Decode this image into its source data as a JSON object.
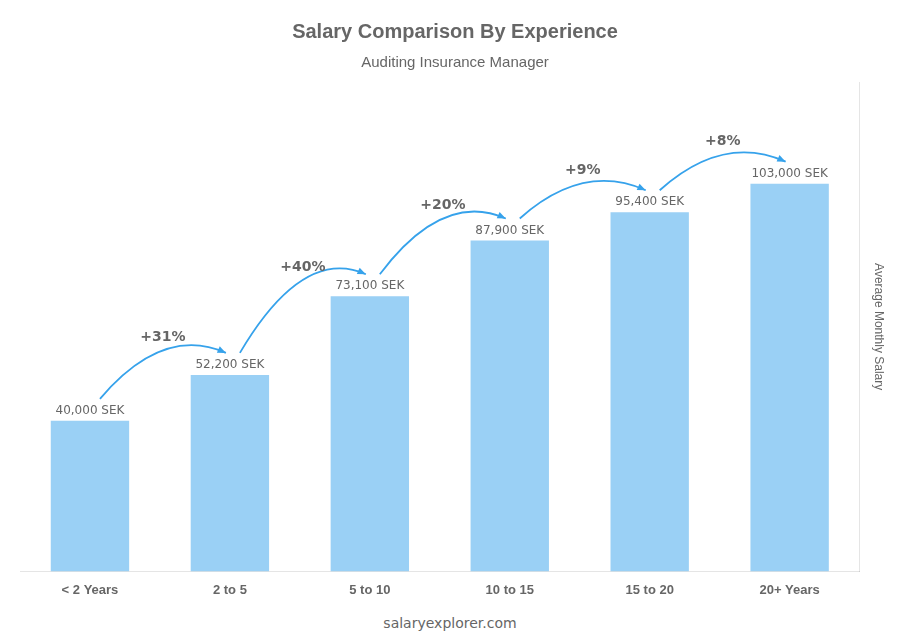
{
  "chart_data": {
    "type": "bar",
    "title": "Salary Comparison By Experience",
    "subtitle": "Auditing Insurance Manager",
    "categories": [
      "< 2 Years",
      "2 to 5",
      "5 to 10",
      "10 to 15",
      "15 to 20",
      "20+ Years"
    ],
    "values": [
      40000,
      52200,
      73100,
      87900,
      95400,
      103000
    ],
    "value_labels": [
      "40,000 SEK",
      "52,200 SEK",
      "73,100 SEK",
      "87,900 SEK",
      "95,400 SEK",
      "103,000 SEK"
    ],
    "data_labels": true,
    "annotations": [
      "+31%",
      "+40%",
      "+20%",
      "+9%",
      "+8%"
    ],
    "ylabel": "Average Monthly Salary",
    "footer": "salaryexplorer.com",
    "ylim": [
      0,
      130000
    ],
    "tick_labels": "x",
    "grid": false
  }
}
